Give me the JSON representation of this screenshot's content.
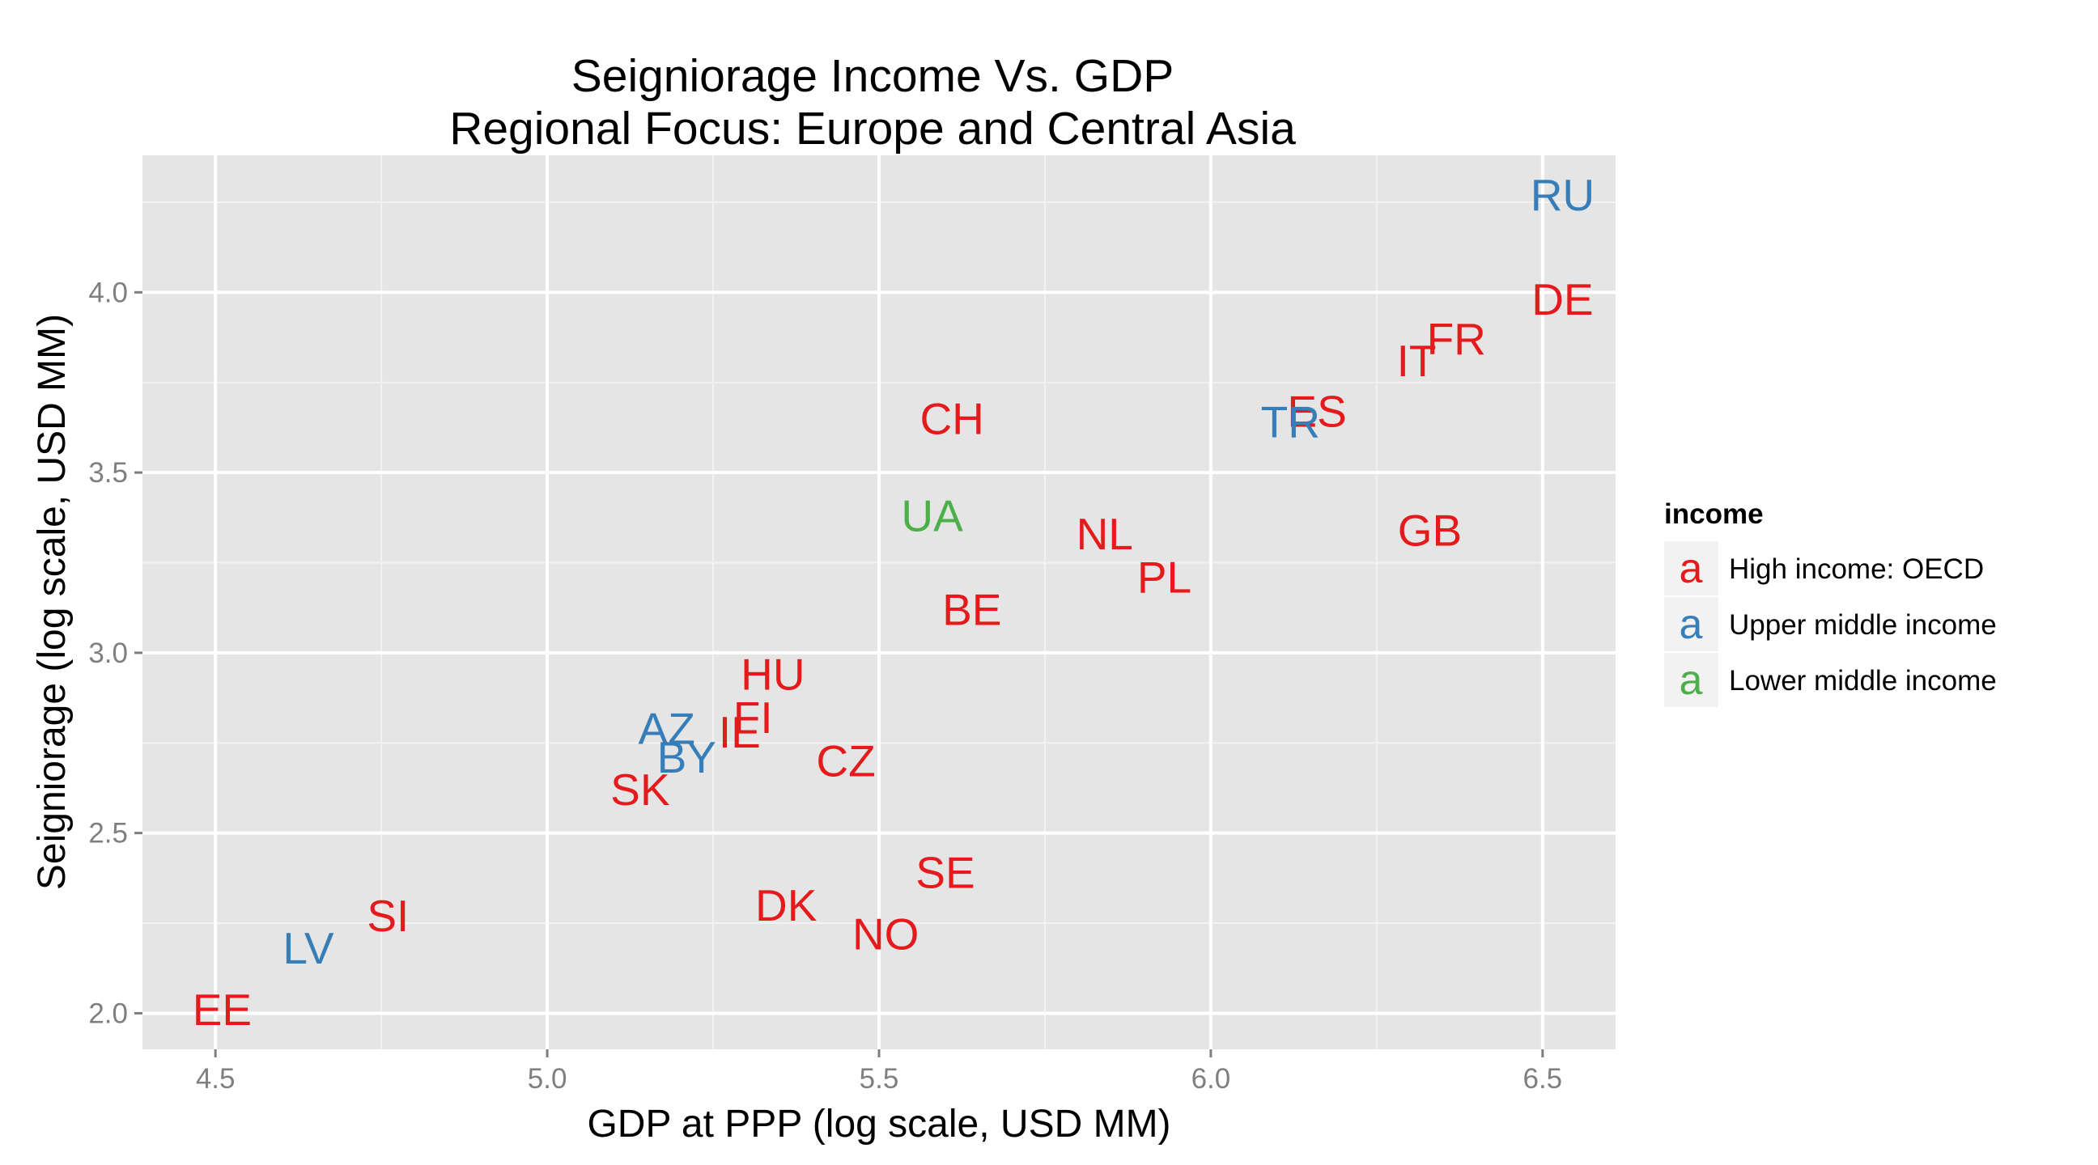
{
  "chart_data": {
    "type": "scatter",
    "title": "Seigniorage Income Vs. GDP",
    "subtitle": "Regional Focus: Europe and Central Asia",
    "xlabel": "GDP at PPP (log scale, USD MM)",
    "ylabel": "Seigniorage (log scale, USD MM)",
    "xlim": [
      4.39,
      6.61
    ],
    "ylim": [
      1.9,
      4.38
    ],
    "x_ticks": [
      4.5,
      5.0,
      5.5,
      6.0,
      6.5
    ],
    "x_tick_labels": [
      "4.5",
      "5.0",
      "5.5",
      "6.0",
      "6.5"
    ],
    "y_ticks": [
      2.0,
      2.5,
      3.0,
      3.5,
      4.0
    ],
    "y_tick_labels": [
      "2.0",
      "2.5",
      "3.0",
      "3.5",
      "4.0"
    ],
    "grid": true,
    "legend": {
      "title": "income",
      "position": "right",
      "key_glyph": "a",
      "entries": [
        {
          "name": "High income: OECD",
          "color": "#E41A1C"
        },
        {
          "name": "Upper middle income",
          "color": "#377EB8"
        },
        {
          "name": "Lower middle income",
          "color": "#4DAF4A"
        }
      ]
    },
    "points": [
      {
        "label": "RU",
        "x": 6.53,
        "y": 4.27,
        "group": 1
      },
      {
        "label": "DE",
        "x": 6.53,
        "y": 3.98,
        "group": 0
      },
      {
        "label": "FR",
        "x": 6.37,
        "y": 3.87,
        "group": 0
      },
      {
        "label": "IT",
        "x": 6.31,
        "y": 3.81,
        "group": 0
      },
      {
        "label": "ES",
        "x": 6.16,
        "y": 3.67,
        "group": 0
      },
      {
        "label": "TR",
        "x": 6.12,
        "y": 3.64,
        "group": 1
      },
      {
        "label": "CH",
        "x": 5.61,
        "y": 3.65,
        "group": 0
      },
      {
        "label": "GB",
        "x": 6.33,
        "y": 3.34,
        "group": 0
      },
      {
        "label": "UA",
        "x": 5.58,
        "y": 3.38,
        "group": 2
      },
      {
        "label": "NL",
        "x": 5.84,
        "y": 3.33,
        "group": 0
      },
      {
        "label": "PL",
        "x": 5.93,
        "y": 3.21,
        "group": 0
      },
      {
        "label": "BE",
        "x": 5.64,
        "y": 3.12,
        "group": 0
      },
      {
        "label": "HU",
        "x": 5.34,
        "y": 2.94,
        "group": 0
      },
      {
        "label": "FI",
        "x": 5.31,
        "y": 2.82,
        "group": 0
      },
      {
        "label": "IE",
        "x": 5.29,
        "y": 2.78,
        "group": 0
      },
      {
        "label": "AZ",
        "x": 5.18,
        "y": 2.79,
        "group": 1
      },
      {
        "label": "BY",
        "x": 5.21,
        "y": 2.71,
        "group": 1
      },
      {
        "label": "CZ",
        "x": 5.45,
        "y": 2.7,
        "group": 0
      },
      {
        "label": "SK",
        "x": 5.14,
        "y": 2.62,
        "group": 0
      },
      {
        "label": "SE",
        "x": 5.6,
        "y": 2.39,
        "group": 0
      },
      {
        "label": "DK",
        "x": 5.36,
        "y": 2.3,
        "group": 0
      },
      {
        "label": "NO",
        "x": 5.51,
        "y": 2.22,
        "group": 0
      },
      {
        "label": "SI",
        "x": 4.76,
        "y": 2.27,
        "group": 0
      },
      {
        "label": "LV",
        "x": 4.64,
        "y": 2.18,
        "group": 1
      },
      {
        "label": "EE",
        "x": 4.51,
        "y": 2.01,
        "group": 0
      }
    ]
  }
}
